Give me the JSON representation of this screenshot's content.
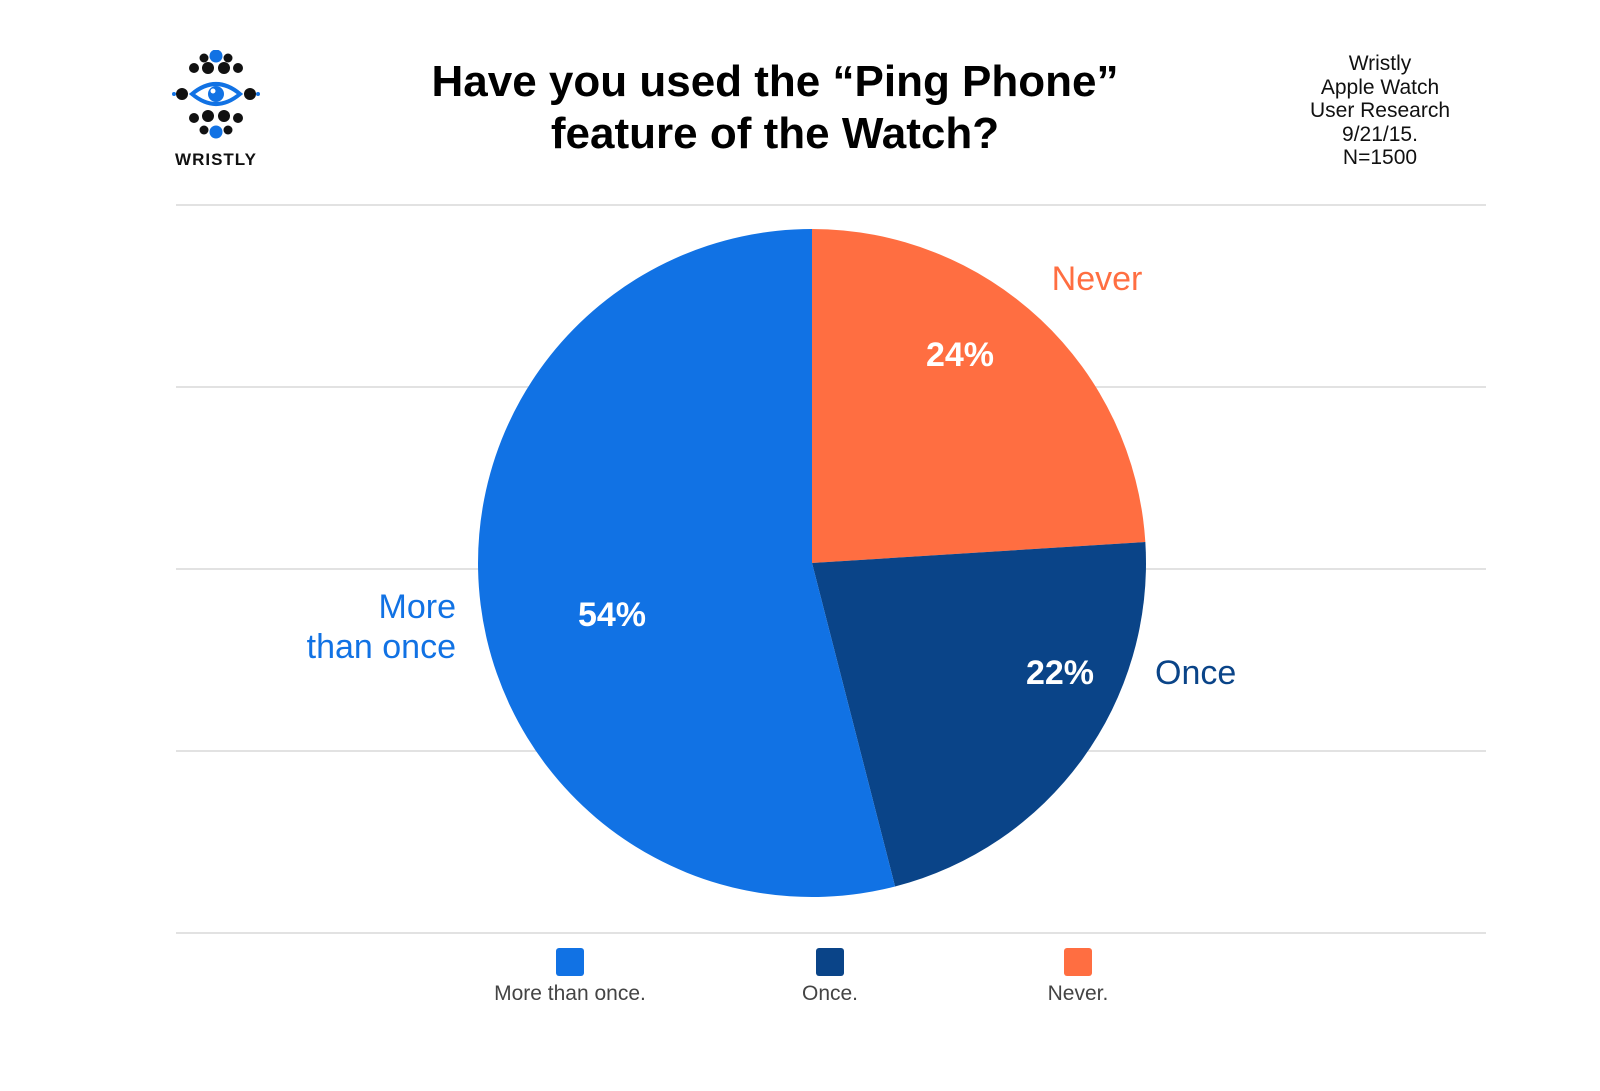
{
  "logo": {
    "text": "WRISTLY",
    "icon": "eye-dot-cluster-icon"
  },
  "title_line1": "Have you used the “Ping Phone”",
  "title_line2": "feature of the Watch?",
  "meta": {
    "line1": "Wristly",
    "line2": "Apple Watch",
    "line3": "User Research",
    "line4": "9/21/15.",
    "line5": "N=1500"
  },
  "colors": {
    "more_than_once": "#1172E4",
    "once": "#0A4488",
    "never": "#FF6E41"
  },
  "chart_data": {
    "type": "pie",
    "title": "Have you used the “Ping Phone” feature of the Watch?",
    "slices": [
      {
        "label": "Never",
        "value": 24,
        "value_label": "24%",
        "color": "#FF6E41"
      },
      {
        "label": "Once",
        "value": 22,
        "value_label": "22%",
        "color": "#0A4488"
      },
      {
        "label": "More than once",
        "value": 54,
        "value_label": "54%",
        "color": "#1172E4"
      }
    ],
    "outer_labels": {
      "never": "Never",
      "once": "Once",
      "more_line1": "More",
      "more_line2": "than once"
    },
    "legend": [
      {
        "label": "More than once.",
        "color": "#1172E4"
      },
      {
        "label": "Once.",
        "color": "#0A4488"
      },
      {
        "label": "Never.",
        "color": "#FF6E41"
      }
    ],
    "legend_position": "bottom",
    "grid": true
  }
}
